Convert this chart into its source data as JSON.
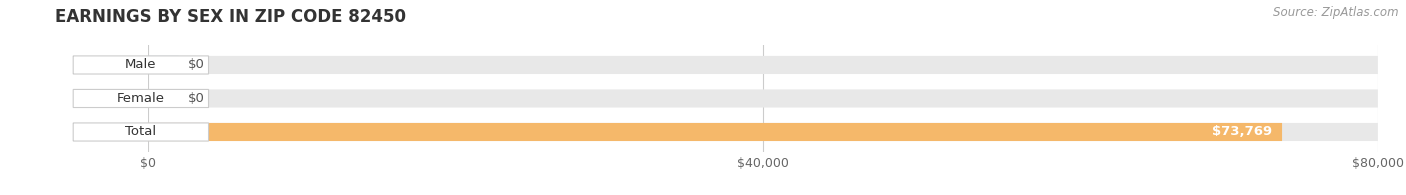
{
  "title": "EARNINGS BY SEX IN ZIP CODE 82450",
  "source": "Source: ZipAtlas.com",
  "categories": [
    "Male",
    "Female",
    "Total"
  ],
  "values": [
    0,
    0,
    73769
  ],
  "max_value": 80000,
  "bar_colors": [
    "#aacfee",
    "#f5a8bf",
    "#f5b86a"
  ],
  "bar_height": 0.52,
  "background_color": "#ffffff",
  "bar_bg_color": "#e8e8e8",
  "tick_values": [
    0,
    40000,
    80000
  ],
  "tick_labels": [
    "$0",
    "$40,000",
    "$80,000"
  ],
  "value_labels": [
    "$0",
    "$0",
    "$73,769"
  ],
  "title_fontsize": 12,
  "label_fontsize": 9.5,
  "tick_fontsize": 9,
  "source_fontsize": 8.5
}
